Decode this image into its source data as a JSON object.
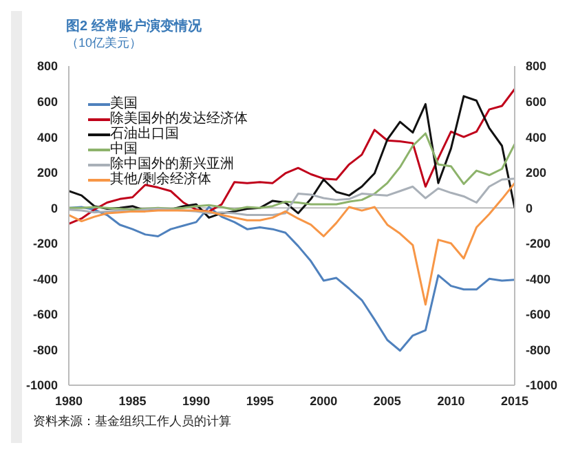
{
  "chart_data": {
    "type": "line",
    "title": "图2 经常账户演变情况",
    "subtitle": "（10亿美元）",
    "annotations": [
      "资料来源：基金组织工作人员的计算"
    ],
    "x": [
      1980,
      1981,
      1982,
      1983,
      1984,
      1985,
      1986,
      1987,
      1988,
      1989,
      1990,
      1991,
      1992,
      1993,
      1994,
      1995,
      1996,
      1997,
      1998,
      1999,
      2000,
      2001,
      2002,
      2003,
      2004,
      2005,
      2006,
      2007,
      2008,
      2009,
      2010,
      2011,
      2012,
      2013,
      2014,
      2015
    ],
    "series": [
      {
        "name": "美国",
        "color": "#4f81bd",
        "values": [
          0,
          5,
          -10,
          -40,
          -95,
          -120,
          -150,
          -160,
          -120,
          -100,
          -80,
          5,
          -50,
          -80,
          -120,
          -110,
          -120,
          -140,
          -215,
          -300,
          -410,
          -395,
          -455,
          -520,
          -630,
          -745,
          -805,
          -720,
          -690,
          -380,
          -440,
          -460,
          -460,
          -400,
          -410,
          -405
        ]
      },
      {
        "name": "除美国外的发达经济体",
        "color": "#c0001a",
        "values": [
          -90,
          -60,
          -10,
          30,
          50,
          60,
          130,
          115,
          95,
          30,
          -10,
          -20,
          20,
          145,
          140,
          145,
          140,
          195,
          225,
          190,
          165,
          160,
          245,
          300,
          440,
          380,
          375,
          365,
          120,
          280,
          430,
          400,
          430,
          555,
          575,
          670
        ]
      },
      {
        "name": "石油出口国",
        "color": "#111111",
        "values": [
          95,
          70,
          10,
          -5,
          0,
          10,
          -15,
          -5,
          -10,
          10,
          20,
          -55,
          -30,
          -20,
          -5,
          0,
          40,
          30,
          -30,
          50,
          160,
          90,
          70,
          120,
          195,
          385,
          485,
          425,
          585,
          140,
          335,
          630,
          605,
          450,
          350,
          0
        ]
      },
      {
        "name": "中国",
        "color": "#8db36b",
        "values": [
          0,
          0,
          5,
          0,
          -5,
          -10,
          -5,
          0,
          -5,
          0,
          10,
          15,
          5,
          -10,
          5,
          0,
          10,
          35,
          30,
          20,
          20,
          20,
          35,
          45,
          80,
          140,
          230,
          350,
          420,
          245,
          235,
          135,
          210,
          185,
          220,
          360
        ]
      },
      {
        "name": "除中国外的新兴亚洲",
        "color": "#a9b0b8",
        "values": [
          -10,
          -15,
          -25,
          -20,
          -15,
          -20,
          -10,
          -5,
          -10,
          -15,
          -20,
          -30,
          -25,
          -30,
          -40,
          -40,
          -40,
          -30,
          80,
          75,
          55,
          45,
          50,
          80,
          75,
          70,
          95,
          120,
          55,
          110,
          85,
          65,
          30,
          120,
          160,
          165
        ]
      },
      {
        "name": "其他/剩余经济体",
        "color": "#f79646",
        "values": [
          -40,
          -75,
          -50,
          -30,
          -25,
          -20,
          -20,
          -15,
          -15,
          -15,
          -15,
          -20,
          -40,
          -55,
          -70,
          -70,
          -55,
          -20,
          -60,
          -95,
          -160,
          -85,
          5,
          -15,
          5,
          -95,
          -145,
          -210,
          -545,
          -180,
          -200,
          -285,
          -110,
          -35,
          50,
          140
        ]
      }
    ],
    "xlim": [
      1980,
      2015
    ],
    "xticks": [
      1980,
      1985,
      1990,
      1995,
      2000,
      2005,
      2010,
      2015
    ],
    "ylim": [
      -1000,
      800
    ],
    "yticks": [
      -1000,
      -800,
      -600,
      -400,
      -200,
      0,
      200,
      400,
      600,
      800
    ],
    "y2lim": [
      -1000,
      800
    ],
    "y2ticks": [
      -1000,
      -800,
      -600,
      -400,
      -200,
      0,
      200,
      400,
      600,
      800
    ],
    "ref_lines": [
      {
        "axis": "y",
        "value": 0,
        "color": "#bbbbbb"
      }
    ],
    "grid": false,
    "legend": "top left",
    "marker": "none",
    "line_style": "solid"
  }
}
